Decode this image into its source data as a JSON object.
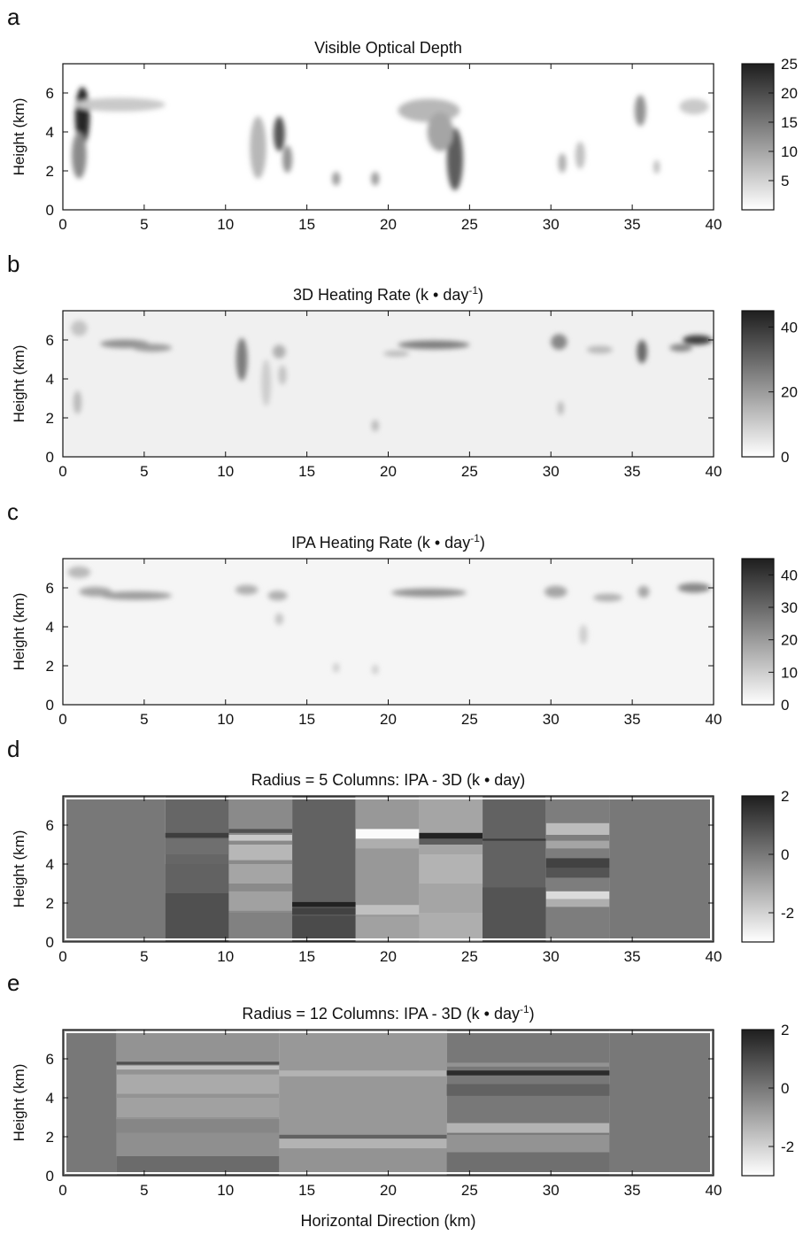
{
  "figure": {
    "xlabel": "Horizontal Direction (km)"
  },
  "chart_data": [
    {
      "type": "heatmap",
      "panel": "a",
      "title": "Visible Optical Depth",
      "title_sup": "",
      "title_end": "",
      "ylabel": "Height (km)",
      "xlim": [
        0,
        40
      ],
      "ylim": [
        0,
        7.5
      ],
      "xticks": [
        0,
        5,
        10,
        15,
        20,
        25,
        30,
        35,
        40
      ],
      "yticks": [
        0,
        2,
        4,
        6
      ],
      "colorbar": {
        "range": [
          0,
          25
        ],
        "ticks": [
          5,
          10,
          15,
          20,
          25
        ]
      },
      "background": 0,
      "blobs": [
        {
          "x": 1.2,
          "y": 4.8,
          "w": 0.45,
          "h": 1.5,
          "v": 24
        },
        {
          "x": 1.0,
          "y": 2.8,
          "w": 0.45,
          "h": 1.2,
          "v": 13
        },
        {
          "x": 3.5,
          "y": 5.4,
          "w": 2.8,
          "h": 0.35,
          "v": 6
        },
        {
          "x": 12.0,
          "y": 3.2,
          "w": 0.5,
          "h": 1.6,
          "v": 8
        },
        {
          "x": 13.3,
          "y": 3.9,
          "w": 0.35,
          "h": 0.9,
          "v": 19
        },
        {
          "x": 13.8,
          "y": 2.6,
          "w": 0.3,
          "h": 0.7,
          "v": 12
        },
        {
          "x": 16.8,
          "y": 1.6,
          "w": 0.25,
          "h": 0.35,
          "v": 11
        },
        {
          "x": 19.2,
          "y": 1.6,
          "w": 0.25,
          "h": 0.35,
          "v": 11
        },
        {
          "x": 22.5,
          "y": 5.1,
          "w": 1.9,
          "h": 0.6,
          "v": 8
        },
        {
          "x": 24.1,
          "y": 2.6,
          "w": 0.5,
          "h": 1.6,
          "v": 18
        },
        {
          "x": 23.2,
          "y": 4.0,
          "w": 0.8,
          "h": 1.0,
          "v": 10
        },
        {
          "x": 30.7,
          "y": 2.4,
          "w": 0.25,
          "h": 0.5,
          "v": 9
        },
        {
          "x": 31.8,
          "y": 2.8,
          "w": 0.3,
          "h": 0.7,
          "v": 7
        },
        {
          "x": 35.5,
          "y": 5.1,
          "w": 0.35,
          "h": 0.8,
          "v": 12
        },
        {
          "x": 38.8,
          "y": 5.3,
          "w": 0.9,
          "h": 0.4,
          "v": 6
        },
        {
          "x": 36.5,
          "y": 2.2,
          "w": 0.2,
          "h": 0.35,
          "v": 7
        }
      ]
    },
    {
      "type": "heatmap",
      "panel": "b",
      "title": "3D Heating Rate (k • day",
      "title_sup": "-1",
      "title_end": ")",
      "ylabel": "Height (km)",
      "xlim": [
        0,
        40
      ],
      "ylim": [
        0,
        7.5
      ],
      "xticks": [
        0,
        5,
        10,
        15,
        20,
        25,
        30,
        35,
        40
      ],
      "yticks": [
        0,
        2,
        4,
        6
      ],
      "colorbar": {
        "range": [
          0,
          45
        ],
        "ticks": [
          0,
          20,
          40
        ]
      },
      "background": 3,
      "blobs": [
        {
          "x": 1.0,
          "y": 6.6,
          "w": 0.5,
          "h": 0.4,
          "v": 12
        },
        {
          "x": 0.9,
          "y": 2.8,
          "w": 0.25,
          "h": 0.6,
          "v": 14
        },
        {
          "x": 3.8,
          "y": 5.8,
          "w": 1.5,
          "h": 0.22,
          "v": 22
        },
        {
          "x": 5.5,
          "y": 5.6,
          "w": 1.2,
          "h": 0.2,
          "v": 20
        },
        {
          "x": 11.0,
          "y": 5.0,
          "w": 0.35,
          "h": 1.1,
          "v": 26
        },
        {
          "x": 12.5,
          "y": 3.8,
          "w": 0.3,
          "h": 1.2,
          "v": 10
        },
        {
          "x": 13.3,
          "y": 5.4,
          "w": 0.4,
          "h": 0.35,
          "v": 16
        },
        {
          "x": 13.5,
          "y": 4.2,
          "w": 0.25,
          "h": 0.5,
          "v": 12
        },
        {
          "x": 19.2,
          "y": 1.6,
          "w": 0.22,
          "h": 0.3,
          "v": 14
        },
        {
          "x": 22.8,
          "y": 5.75,
          "w": 2.2,
          "h": 0.22,
          "v": 26
        },
        {
          "x": 20.5,
          "y": 5.3,
          "w": 0.8,
          "h": 0.15,
          "v": 14
        },
        {
          "x": 30.5,
          "y": 5.9,
          "w": 0.5,
          "h": 0.4,
          "v": 24
        },
        {
          "x": 30.6,
          "y": 2.5,
          "w": 0.2,
          "h": 0.35,
          "v": 14
        },
        {
          "x": 33.0,
          "y": 5.5,
          "w": 0.8,
          "h": 0.2,
          "v": 14
        },
        {
          "x": 35.6,
          "y": 5.4,
          "w": 0.32,
          "h": 0.6,
          "v": 30
        },
        {
          "x": 39.0,
          "y": 6.0,
          "w": 0.9,
          "h": 0.25,
          "v": 38
        },
        {
          "x": 38.0,
          "y": 5.6,
          "w": 0.7,
          "h": 0.2,
          "v": 24
        }
      ]
    },
    {
      "type": "heatmap",
      "panel": "c",
      "title": "IPA Heating Rate (k • day",
      "title_sup": "-1",
      "title_end": ")",
      "ylabel": "Height (km)",
      "xlim": [
        0,
        40
      ],
      "ylim": [
        0,
        7.5
      ],
      "xticks": [
        0,
        5,
        10,
        15,
        20,
        25,
        30,
        35,
        40
      ],
      "yticks": [
        0,
        2,
        4,
        6
      ],
      "colorbar": {
        "range": [
          0,
          45
        ],
        "ticks": [
          0,
          10,
          20,
          30,
          40
        ]
      },
      "background": 2,
      "blobs": [
        {
          "x": 1.0,
          "y": 6.8,
          "w": 0.7,
          "h": 0.3,
          "v": 14
        },
        {
          "x": 2.0,
          "y": 5.8,
          "w": 1.0,
          "h": 0.25,
          "v": 18
        },
        {
          "x": 4.5,
          "y": 5.6,
          "w": 2.2,
          "h": 0.22,
          "v": 20
        },
        {
          "x": 11.3,
          "y": 5.9,
          "w": 0.7,
          "h": 0.25,
          "v": 16
        },
        {
          "x": 13.2,
          "y": 5.6,
          "w": 0.6,
          "h": 0.25,
          "v": 16
        },
        {
          "x": 13.3,
          "y": 4.4,
          "w": 0.25,
          "h": 0.3,
          "v": 12
        },
        {
          "x": 16.8,
          "y": 1.9,
          "w": 0.2,
          "h": 0.25,
          "v": 10
        },
        {
          "x": 19.2,
          "y": 1.8,
          "w": 0.2,
          "h": 0.25,
          "v": 10
        },
        {
          "x": 22.5,
          "y": 5.75,
          "w": 2.3,
          "h": 0.22,
          "v": 22
        },
        {
          "x": 30.3,
          "y": 5.8,
          "w": 0.7,
          "h": 0.3,
          "v": 18
        },
        {
          "x": 32.0,
          "y": 3.6,
          "w": 0.25,
          "h": 0.5,
          "v": 10
        },
        {
          "x": 33.5,
          "y": 5.5,
          "w": 0.9,
          "h": 0.2,
          "v": 16
        },
        {
          "x": 35.7,
          "y": 5.8,
          "w": 0.35,
          "h": 0.3,
          "v": 18
        },
        {
          "x": 38.8,
          "y": 6.0,
          "w": 1.0,
          "h": 0.25,
          "v": 24
        }
      ]
    },
    {
      "type": "heatmap",
      "panel": "d",
      "title": "Radius = 5 Columns: IPA - 3D (k • day)",
      "title_sup": "",
      "title_end": "",
      "ylabel": "Height (km)",
      "xlim": [
        0,
        40
      ],
      "ylim": [
        0,
        7.5
      ],
      "xticks": [
        0,
        5,
        10,
        15,
        20,
        25,
        30,
        35,
        40
      ],
      "yticks": [
        0,
        2,
        4,
        6
      ],
      "colorbar": {
        "range": [
          -3,
          2
        ],
        "ticks": [
          -2,
          0,
          2
        ]
      },
      "frame": 0,
      "columns": [
        {
          "x0": 0,
          "x1": 6.3,
          "base": 0,
          "bands": []
        },
        {
          "x0": 6.3,
          "x1": 10.2,
          "base": 0.4,
          "bands": [
            {
              "y0": 5.35,
              "y1": 5.6,
              "v": 1.3
            },
            {
              "y0": 4.5,
              "y1": 5.3,
              "v": 0.2
            },
            {
              "y0": 2.5,
              "y1": 4.0,
              "v": 0.5
            },
            {
              "y0": 0,
              "y1": 2.5,
              "v": 0.9
            }
          ]
        },
        {
          "x0": 10.2,
          "x1": 14.1,
          "base": -0.4,
          "bands": [
            {
              "y0": 5.6,
              "y1": 5.8,
              "v": 0.9
            },
            {
              "y0": 5.2,
              "y1": 5.5,
              "v": -1.8
            },
            {
              "y0": 4.2,
              "y1": 5.0,
              "v": -1.4
            },
            {
              "y0": 3.0,
              "y1": 4.0,
              "v": -1.0
            },
            {
              "y0": 1.6,
              "y1": 2.6,
              "v": -0.9
            },
            {
              "y0": 0,
              "y1": 1.5,
              "v": -0.2
            }
          ]
        },
        {
          "x0": 14.1,
          "x1": 18.0,
          "base": 0.5,
          "bands": [
            {
              "y0": 1.8,
              "y1": 2.05,
              "v": 1.9
            },
            {
              "y0": 1.4,
              "y1": 1.75,
              "v": 1.2
            },
            {
              "y0": 0,
              "y1": 1.35,
              "v": 1.0
            }
          ]
        },
        {
          "x0": 18.0,
          "x1": 21.9,
          "base": -0.7,
          "bands": [
            {
              "y0": 5.3,
              "y1": 5.8,
              "v": -2.9
            },
            {
              "y0": 4.8,
              "y1": 5.3,
              "v": -1.2
            },
            {
              "y0": 1.4,
              "y1": 1.9,
              "v": -1.6
            },
            {
              "y0": 0,
              "y1": 1.3,
              "v": -0.9
            }
          ]
        },
        {
          "x0": 21.9,
          "x1": 25.8,
          "base": -1.0,
          "bands": [
            {
              "y0": 5.3,
              "y1": 5.6,
              "v": 1.9
            },
            {
              "y0": 5.0,
              "y1": 5.3,
              "v": 0.6
            },
            {
              "y0": 3.0,
              "y1": 4.5,
              "v": -1.3
            },
            {
              "y0": 0,
              "y1": 1.5,
              "v": -1.2
            }
          ]
        },
        {
          "x0": 25.8,
          "x1": 29.7,
          "base": 0.5,
          "bands": [
            {
              "y0": 5.2,
              "y1": 5.3,
              "v": 1.4
            },
            {
              "y0": 0,
              "y1": 2.8,
              "v": 0.8
            }
          ]
        },
        {
          "x0": 29.7,
          "x1": 33.6,
          "base": -0.1,
          "bands": [
            {
              "y0": 5.5,
              "y1": 6.1,
              "v": -1.5
            },
            {
              "y0": 4.8,
              "y1": 5.2,
              "v": -1.0
            },
            {
              "y0": 3.8,
              "y1": 4.3,
              "v": 1.2
            },
            {
              "y0": 3.3,
              "y1": 3.8,
              "v": 0.8
            },
            {
              "y0": 2.2,
              "y1": 2.6,
              "v": -2.2
            },
            {
              "y0": 1.8,
              "y1": 2.2,
              "v": -1.2
            }
          ]
        },
        {
          "x0": 33.6,
          "x1": 40,
          "base": 0,
          "bands": []
        }
      ]
    },
    {
      "type": "heatmap",
      "panel": "e",
      "title": "Radius = 12 Columns: IPA - 3D (k • day",
      "title_sup": "-1",
      "title_end": ")",
      "ylabel": "Height (km)",
      "xlim": [
        0,
        40
      ],
      "ylim": [
        0,
        7.5
      ],
      "xticks": [
        0,
        5,
        10,
        15,
        20,
        25,
        30,
        35,
        40
      ],
      "yticks": [
        0,
        2,
        4,
        6
      ],
      "colorbar": {
        "range": [
          -3,
          2
        ],
        "ticks": [
          -2,
          0,
          2
        ]
      },
      "frame": 0,
      "columns": [
        {
          "x0": 0,
          "x1": 3.3,
          "base": 0,
          "bands": []
        },
        {
          "x0": 3.3,
          "x1": 13.3,
          "base": -0.6,
          "bands": [
            {
              "y0": 5.7,
              "y1": 5.85,
              "v": 0.9
            },
            {
              "y0": 5.45,
              "y1": 5.65,
              "v": -1.6
            },
            {
              "y0": 4.2,
              "y1": 5.2,
              "v": -1.1
            },
            {
              "y0": 3.0,
              "y1": 4.0,
              "v": -0.9
            },
            {
              "y0": 2.2,
              "y1": 2.9,
              "v": -0.3
            },
            {
              "y0": 1.0,
              "y1": 2.2,
              "v": -0.5
            },
            {
              "y0": 0,
              "y1": 1.0,
              "v": 0.3
            }
          ]
        },
        {
          "x0": 13.3,
          "x1": 23.6,
          "base": -0.7,
          "bands": [
            {
              "y0": 5.1,
              "y1": 5.4,
              "v": -1.3
            },
            {
              "y0": 1.9,
              "y1": 2.1,
              "v": 0.5
            },
            {
              "y0": 1.4,
              "y1": 1.9,
              "v": -1.3
            },
            {
              "y0": 0,
              "y1": 1.4,
              "v": -0.6
            }
          ]
        },
        {
          "x0": 23.6,
          "x1": 33.6,
          "base": 0.0,
          "bands": [
            {
              "y0": 5.6,
              "y1": 5.8,
              "v": -0.6
            },
            {
              "y0": 5.15,
              "y1": 5.4,
              "v": 1.7
            },
            {
              "y0": 4.1,
              "y1": 4.7,
              "v": 0.5
            },
            {
              "y0": 2.2,
              "y1": 2.7,
              "v": -1.3
            },
            {
              "y0": 1.2,
              "y1": 2.1,
              "v": -0.6
            },
            {
              "y0": 0,
              "y1": 1.2,
              "v": 0.2
            }
          ]
        },
        {
          "x0": 33.6,
          "x1": 40,
          "base": 0,
          "bands": []
        }
      ]
    }
  ]
}
